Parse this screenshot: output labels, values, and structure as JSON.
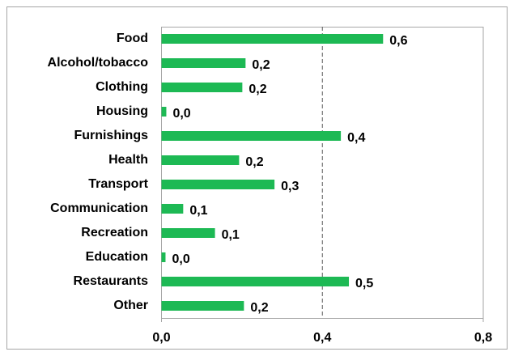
{
  "chart_data": {
    "type": "bar",
    "orientation": "horizontal",
    "categories": [
      "Food",
      "Alcohol/tobacco",
      "Clothing",
      "Housing",
      "Furnishings",
      "Health",
      "Transport",
      "Communication",
      "Recreation",
      "Education",
      "Restaurants",
      "Other"
    ],
    "values": [
      0.551,
      0.209,
      0.201,
      0.012,
      0.446,
      0.193,
      0.281,
      0.054,
      0.133,
      0.01,
      0.466,
      0.205
    ],
    "value_labels": [
      "0,6",
      "0,2",
      "0,2",
      "0,0",
      "0,4",
      "0,2",
      "0,3",
      "0,1",
      "0,1",
      "0,0",
      "0,5",
      "0,2"
    ],
    "color": "#1db954",
    "xlim": [
      0,
      0.8
    ],
    "xticks": [
      {
        "value": 0,
        "label": "0,0"
      },
      {
        "value": 0.4,
        "label": "0,4"
      },
      {
        "value": 0.8,
        "label": "0,8"
      }
    ],
    "grid": true
  }
}
